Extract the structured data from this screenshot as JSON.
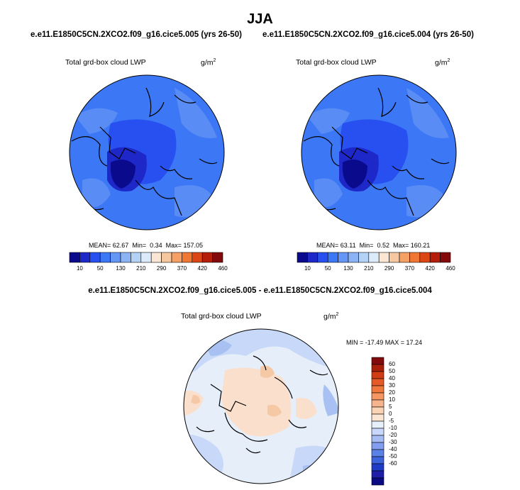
{
  "figure": {
    "title": "JJA",
    "diff_title": "e.e11.E1850C5CN.2XCO2.f09_g16.cice5.005 - e.e11.E1850C5CN.2XCO2.f09_g16.cice5.004"
  },
  "panels": [
    {
      "run_title": "e.e11.E1850C5CN.2XCO2.f09_g16.cice5.005 (yrs 26-50)",
      "variable": "Total grd-box cloud LWP",
      "units": "g/m",
      "units_exp": "2",
      "stats": {
        "mean_label": "MEAN=",
        "mean": "62.67",
        "min_label": "Min=",
        "min": "0.34",
        "max_label": "Max=",
        "max": "157.05"
      }
    },
    {
      "run_title": "e.e11.E1850C5CN.2XCO2.f09_g16.cice5.004 (yrs 26-50)",
      "variable": "Total grd-box cloud LWP",
      "units": "g/m",
      "units_exp": "2",
      "stats": {
        "mean_label": "MEAN=",
        "mean": "63.11",
        "min_label": "Min=",
        "min": "0.52",
        "max_label": "Max=",
        "max": "160.21"
      }
    }
  ],
  "diff_panel": {
    "variable": "Total grd-box cloud LWP",
    "units": "g/m",
    "units_exp": "2",
    "minmax": "MIN = -17.49 MAX =  17.24"
  },
  "colorbars": {
    "abs_colors": [
      "#0a0a8c",
      "#1e28c8",
      "#2850f0",
      "#3c78f5",
      "#6496f5",
      "#8cb4f5",
      "#b4d2f5",
      "#dcebfa",
      "#fae6d2",
      "#f5c8a0",
      "#f5a064",
      "#f07832",
      "#dc4614",
      "#b41e0a",
      "#820a0a"
    ],
    "abs_labels": [
      "10",
      "50",
      "130",
      "210",
      "290",
      "370",
      "420",
      "460"
    ],
    "diff_colors": [
      "#0a0a82",
      "#1e1eaa",
      "#1e3cc8",
      "#3c64dc",
      "#5a82e6",
      "#829ef0",
      "#a5bcf5",
      "#c8d7fa",
      "#e6f0fa",
      "#fae6d2",
      "#fad2b4",
      "#f5b48c",
      "#f59664",
      "#f0783c",
      "#e65a28",
      "#d23c14",
      "#aa1e0a",
      "#820a0a"
    ],
    "diff_labels": [
      "60",
      "50",
      "40",
      "30",
      "20",
      "10",
      "5",
      "0",
      "-5",
      "-10",
      "-20",
      "-30",
      "-40",
      "-50",
      "-60"
    ]
  },
  "map_colors": {
    "abs_base": "#3c78f5",
    "abs_patch_light": "#5a8cf5",
    "abs_patch_dark": "#2850f0",
    "abs_deep": "#1e28c8",
    "abs_deepest": "#0a0a8c",
    "diff_neutral": "#e6eefa",
    "diff_pos": "#fae0cc",
    "diff_pos2": "#f5c8a6",
    "diff_neg": "#c8d8f8",
    "diff_neg2": "#a8c0f2",
    "coast": "#000000"
  }
}
